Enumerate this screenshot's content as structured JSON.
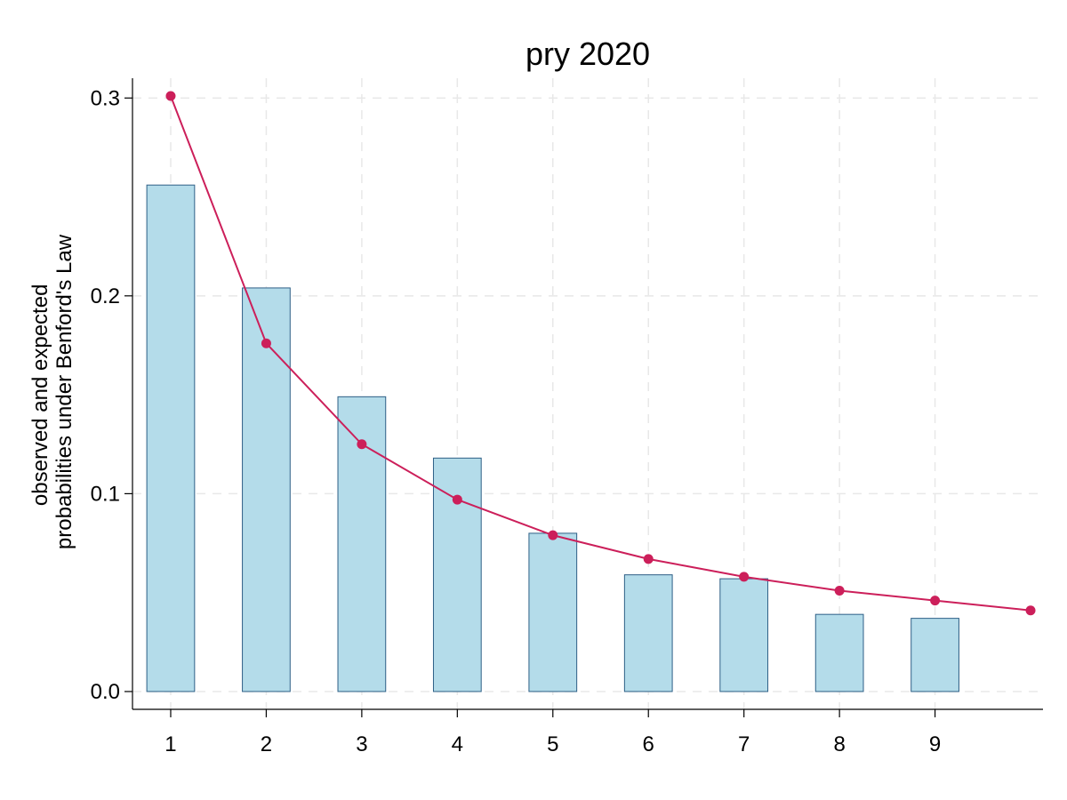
{
  "chart_data": {
    "type": "bar",
    "title": "pry 2020",
    "ylabel_lines": [
      "observed and expected",
      "probabilities under Benford's Law"
    ],
    "xlabel": "",
    "x": [
      1,
      2,
      3,
      4,
      5,
      6,
      7,
      8,
      9
    ],
    "x_tick_labels": [
      "1",
      "2",
      "3",
      "4",
      "5",
      "6",
      "7",
      "8",
      "9"
    ],
    "xlim": [
      0.6,
      10.13
    ],
    "ylim": [
      -0.009,
      0.31
    ],
    "y_ticks": [
      0.0,
      0.1,
      0.2,
      0.3
    ],
    "y_tick_labels": [
      "0.0",
      "0.1",
      "0.2",
      "0.3"
    ],
    "grid": true,
    "series": [
      {
        "kind": "bar",
        "x": [
          1,
          2,
          3,
          4,
          5,
          6,
          7,
          8,
          9
        ],
        "values": [
          0.256,
          0.204,
          0.149,
          0.118,
          0.08,
          0.059,
          0.057,
          0.039,
          0.037
        ]
      },
      {
        "kind": "line",
        "x": [
          1,
          2,
          3,
          4,
          5,
          6,
          7,
          8,
          9,
          10
        ],
        "values": [
          0.301,
          0.176,
          0.125,
          0.097,
          0.079,
          0.067,
          0.058,
          0.051,
          0.046,
          0.041
        ]
      }
    ],
    "colors": {
      "bar_fill": "#b4dcea",
      "bar_edge": "#2e5f86",
      "line": "#cc1f5a"
    }
  }
}
